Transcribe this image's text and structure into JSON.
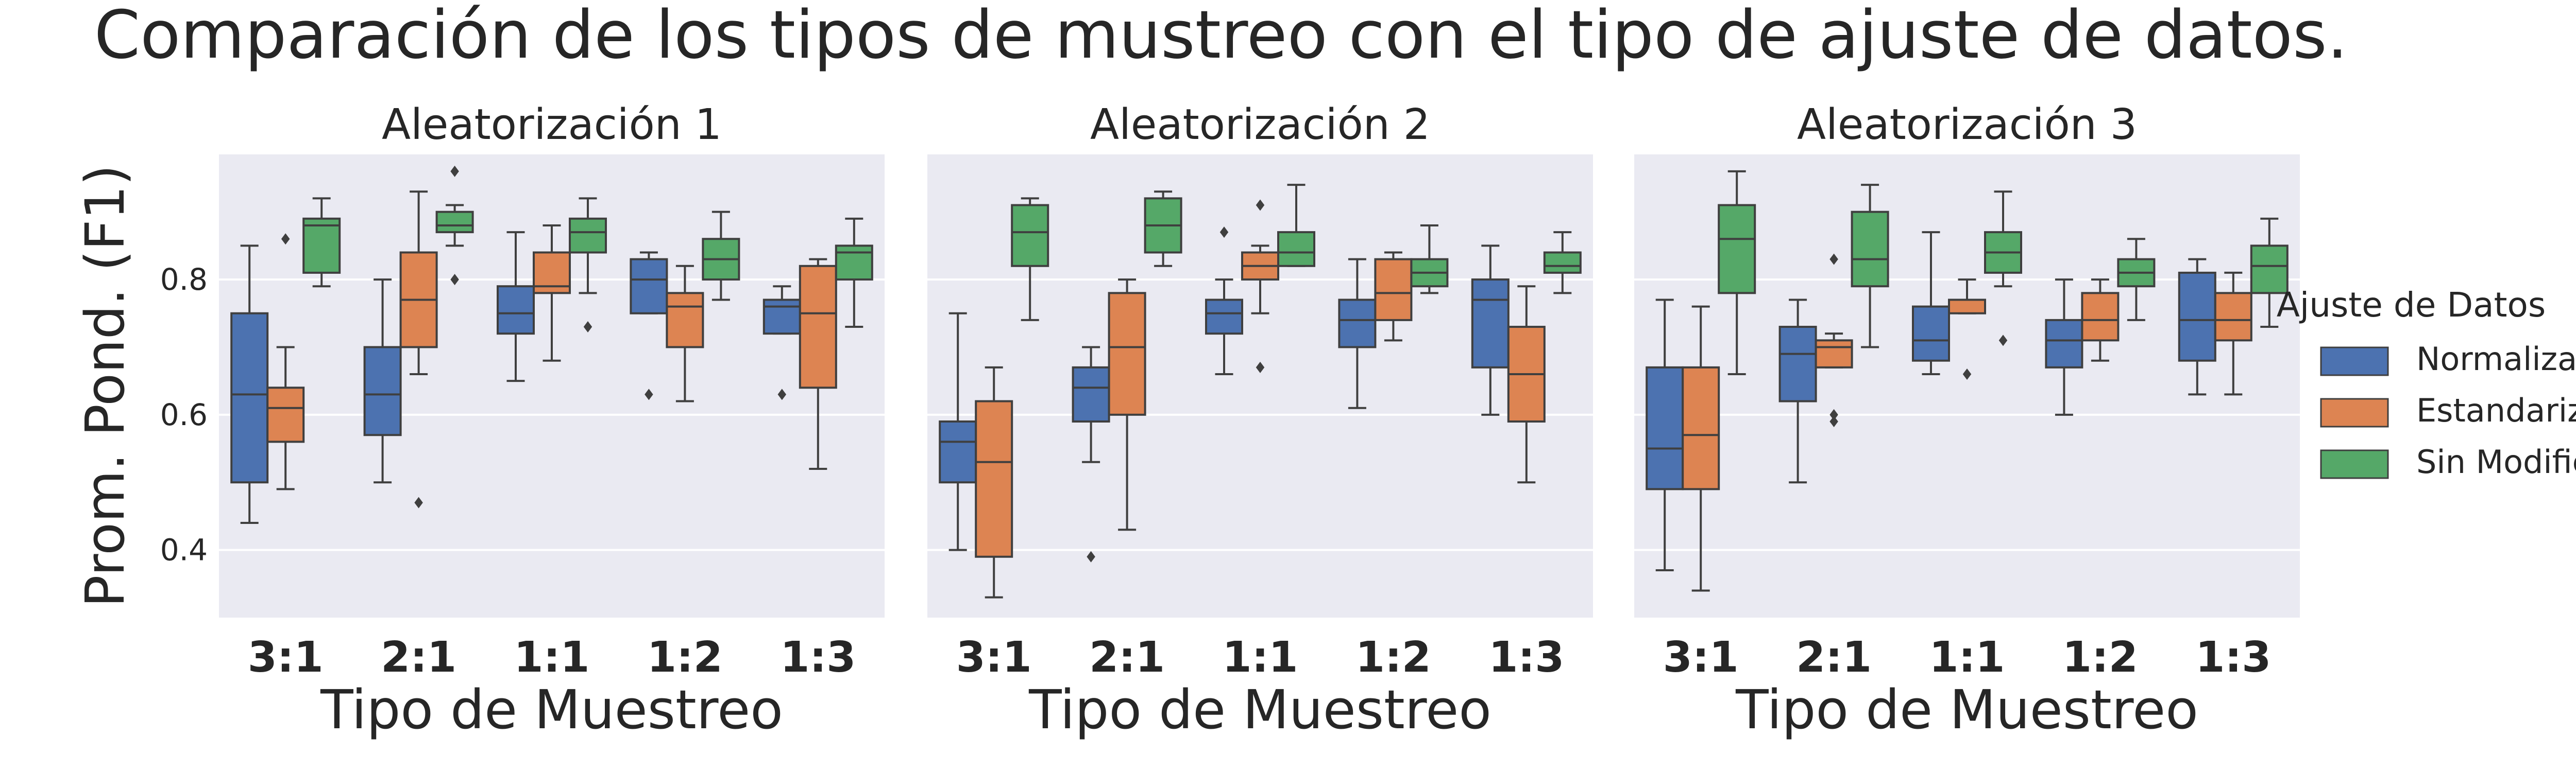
{
  "title": "Comparación de los tipos de mustreo con el tipo de ajuste de datos.",
  "ylabel": "Prom. Pond. (F1)",
  "xlabel": "Tipo de Muestreo",
  "legend": {
    "title": "Ajuste de Datos",
    "placement": "right",
    "entries": [
      {
        "label": "Normalizados",
        "color": "#4c72b0"
      },
      {
        "label": "Estandarizados",
        "color": "#dd8452"
      },
      {
        "label": "Sin Modificación",
        "color": "#55a868"
      }
    ]
  },
  "colors": {
    "panel_background": "#eaeaf2",
    "grid": "#ffffff",
    "line": "#3f3f3f"
  },
  "chart_data": [
    {
      "type": "boxplot",
      "title": "Aleatorización 1",
      "xlabel": "Tipo de Muestreo",
      "ylabel": "Prom. Pond. (F1)",
      "ylim": [
        0.3,
        0.985
      ],
      "yticks": [
        0.4,
        0.6,
        0.8
      ],
      "grid": true,
      "categories": [
        "3:1",
        "2:1",
        "1:1",
        "1:2",
        "1:3"
      ],
      "series": [
        {
          "name": "Normalizados",
          "boxes": [
            {
              "whislo": 0.44,
              "q1": 0.5,
              "med": 0.63,
              "q3": 0.75,
              "whishi": 0.85,
              "fliers": []
            },
            {
              "whislo": 0.5,
              "q1": 0.57,
              "med": 0.63,
              "q3": 0.7,
              "whishi": 0.8,
              "fliers": []
            },
            {
              "whislo": 0.65,
              "q1": 0.72,
              "med": 0.75,
              "q3": 0.79,
              "whishi": 0.87,
              "fliers": []
            },
            {
              "whislo": 0.75,
              "q1": 0.75,
              "med": 0.8,
              "q3": 0.83,
              "whishi": 0.84,
              "fliers": [
                0.63
              ]
            },
            {
              "whislo": 0.72,
              "q1": 0.72,
              "med": 0.76,
              "q3": 0.77,
              "whishi": 0.79,
              "fliers": [
                0.63
              ]
            }
          ]
        },
        {
          "name": "Estandarizados",
          "boxes": [
            {
              "whislo": 0.49,
              "q1": 0.56,
              "med": 0.61,
              "q3": 0.64,
              "whishi": 0.7,
              "fliers": [
                0.86
              ]
            },
            {
              "whislo": 0.66,
              "q1": 0.7,
              "med": 0.77,
              "q3": 0.84,
              "whishi": 0.93,
              "fliers": [
                0.47
              ]
            },
            {
              "whislo": 0.68,
              "q1": 0.78,
              "med": 0.79,
              "q3": 0.84,
              "whishi": 0.88,
              "fliers": []
            },
            {
              "whislo": 0.62,
              "q1": 0.7,
              "med": 0.76,
              "q3": 0.78,
              "whishi": 0.82,
              "fliers": []
            },
            {
              "whislo": 0.52,
              "q1": 0.64,
              "med": 0.75,
              "q3": 0.82,
              "whishi": 0.83,
              "fliers": []
            }
          ]
        },
        {
          "name": "Sin Modificación",
          "boxes": [
            {
              "whislo": 0.79,
              "q1": 0.81,
              "med": 0.88,
              "q3": 0.89,
              "whishi": 0.92,
              "fliers": []
            },
            {
              "whislo": 0.85,
              "q1": 0.87,
              "med": 0.88,
              "q3": 0.9,
              "whishi": 0.91,
              "fliers": [
                0.96,
                0.8
              ]
            },
            {
              "whislo": 0.78,
              "q1": 0.84,
              "med": 0.87,
              "q3": 0.89,
              "whishi": 0.92,
              "fliers": [
                0.73
              ]
            },
            {
              "whislo": 0.77,
              "q1": 0.8,
              "med": 0.83,
              "q3": 0.86,
              "whishi": 0.9,
              "fliers": []
            },
            {
              "whislo": 0.73,
              "q1": 0.8,
              "med": 0.84,
              "q3": 0.85,
              "whishi": 0.89,
              "fliers": []
            }
          ]
        }
      ]
    },
    {
      "type": "boxplot",
      "title": "Aleatorización 2",
      "xlabel": "Tipo de Muestreo",
      "ylim": [
        0.3,
        0.985
      ],
      "yticks": [
        0.4,
        0.6,
        0.8
      ],
      "grid": true,
      "categories": [
        "3:1",
        "2:1",
        "1:1",
        "1:2",
        "1:3"
      ],
      "series": [
        {
          "name": "Normalizados",
          "boxes": [
            {
              "whislo": 0.4,
              "q1": 0.5,
              "med": 0.56,
              "q3": 0.59,
              "whishi": 0.75,
              "fliers": []
            },
            {
              "whislo": 0.53,
              "q1": 0.59,
              "med": 0.64,
              "q3": 0.67,
              "whishi": 0.7,
              "fliers": [
                0.39
              ]
            },
            {
              "whislo": 0.66,
              "q1": 0.72,
              "med": 0.75,
              "q3": 0.77,
              "whishi": 0.8,
              "fliers": [
                0.87
              ]
            },
            {
              "whislo": 0.61,
              "q1": 0.7,
              "med": 0.74,
              "q3": 0.77,
              "whishi": 0.83,
              "fliers": []
            },
            {
              "whislo": 0.6,
              "q1": 0.67,
              "med": 0.77,
              "q3": 0.8,
              "whishi": 0.85,
              "fliers": []
            }
          ]
        },
        {
          "name": "Estandarizados",
          "boxes": [
            {
              "whislo": 0.33,
              "q1": 0.39,
              "med": 0.53,
              "q3": 0.62,
              "whishi": 0.67,
              "fliers": []
            },
            {
              "whislo": 0.43,
              "q1": 0.6,
              "med": 0.7,
              "q3": 0.78,
              "whishi": 0.8,
              "fliers": []
            },
            {
              "whislo": 0.75,
              "q1": 0.8,
              "med": 0.82,
              "q3": 0.84,
              "whishi": 0.85,
              "fliers": [
                0.91,
                0.67
              ]
            },
            {
              "whislo": 0.71,
              "q1": 0.74,
              "med": 0.78,
              "q3": 0.83,
              "whishi": 0.84,
              "fliers": []
            },
            {
              "whislo": 0.5,
              "q1": 0.59,
              "med": 0.66,
              "q3": 0.73,
              "whishi": 0.79,
              "fliers": []
            }
          ]
        },
        {
          "name": "Sin Modificación",
          "boxes": [
            {
              "whislo": 0.74,
              "q1": 0.82,
              "med": 0.87,
              "q3": 0.91,
              "whishi": 0.92,
              "fliers": []
            },
            {
              "whislo": 0.82,
              "q1": 0.84,
              "med": 0.88,
              "q3": 0.92,
              "whishi": 0.93,
              "fliers": []
            },
            {
              "whislo": 0.82,
              "q1": 0.82,
              "med": 0.84,
              "q3": 0.87,
              "whishi": 0.94,
              "fliers": []
            },
            {
              "whislo": 0.78,
              "q1": 0.79,
              "med": 0.81,
              "q3": 0.83,
              "whishi": 0.88,
              "fliers": []
            },
            {
              "whislo": 0.78,
              "q1": 0.81,
              "med": 0.82,
              "q3": 0.84,
              "whishi": 0.87,
              "fliers": []
            }
          ]
        }
      ]
    },
    {
      "type": "boxplot",
      "title": "Aleatorización 3",
      "xlabel": "Tipo de Muestreo",
      "ylim": [
        0.3,
        0.985
      ],
      "yticks": [
        0.4,
        0.6,
        0.8
      ],
      "grid": true,
      "categories": [
        "3:1",
        "2:1",
        "1:1",
        "1:2",
        "1:3"
      ],
      "series": [
        {
          "name": "Normalizados",
          "boxes": [
            {
              "whislo": 0.37,
              "q1": 0.49,
              "med": 0.55,
              "q3": 0.67,
              "whishi": 0.77,
              "fliers": []
            },
            {
              "whislo": 0.5,
              "q1": 0.62,
              "med": 0.69,
              "q3": 0.73,
              "whishi": 0.77,
              "fliers": []
            },
            {
              "whislo": 0.66,
              "q1": 0.68,
              "med": 0.71,
              "q3": 0.76,
              "whishi": 0.87,
              "fliers": []
            },
            {
              "whislo": 0.6,
              "q1": 0.67,
              "med": 0.71,
              "q3": 0.74,
              "whishi": 0.8,
              "fliers": []
            },
            {
              "whislo": 0.63,
              "q1": 0.68,
              "med": 0.74,
              "q3": 0.81,
              "whishi": 0.83,
              "fliers": []
            }
          ]
        },
        {
          "name": "Estandarizados",
          "boxes": [
            {
              "whislo": 0.34,
              "q1": 0.49,
              "med": 0.57,
              "q3": 0.67,
              "whishi": 0.76,
              "fliers": []
            },
            {
              "whislo": 0.67,
              "q1": 0.67,
              "med": 0.7,
              "q3": 0.71,
              "whishi": 0.72,
              "fliers": [
                0.83,
                0.6,
                0.59
              ]
            },
            {
              "whislo": 0.75,
              "q1": 0.75,
              "med": 0.77,
              "q3": 0.77,
              "whishi": 0.8,
              "fliers": [
                0.66
              ]
            },
            {
              "whislo": 0.68,
              "q1": 0.71,
              "med": 0.74,
              "q3": 0.78,
              "whishi": 0.8,
              "fliers": []
            },
            {
              "whislo": 0.63,
              "q1": 0.71,
              "med": 0.74,
              "q3": 0.78,
              "whishi": 0.81,
              "fliers": []
            }
          ]
        },
        {
          "name": "Sin Modificación",
          "boxes": [
            {
              "whislo": 0.66,
              "q1": 0.78,
              "med": 0.86,
              "q3": 0.91,
              "whishi": 0.96,
              "fliers": []
            },
            {
              "whislo": 0.7,
              "q1": 0.79,
              "med": 0.83,
              "q3": 0.9,
              "whishi": 0.94,
              "fliers": []
            },
            {
              "whislo": 0.79,
              "q1": 0.81,
              "med": 0.84,
              "q3": 0.87,
              "whishi": 0.93,
              "fliers": [
                0.71
              ]
            },
            {
              "whislo": 0.74,
              "q1": 0.79,
              "med": 0.81,
              "q3": 0.83,
              "whishi": 0.86,
              "fliers": []
            },
            {
              "whislo": 0.73,
              "q1": 0.78,
              "med": 0.82,
              "q3": 0.85,
              "whishi": 0.89,
              "fliers": []
            }
          ]
        }
      ]
    }
  ]
}
